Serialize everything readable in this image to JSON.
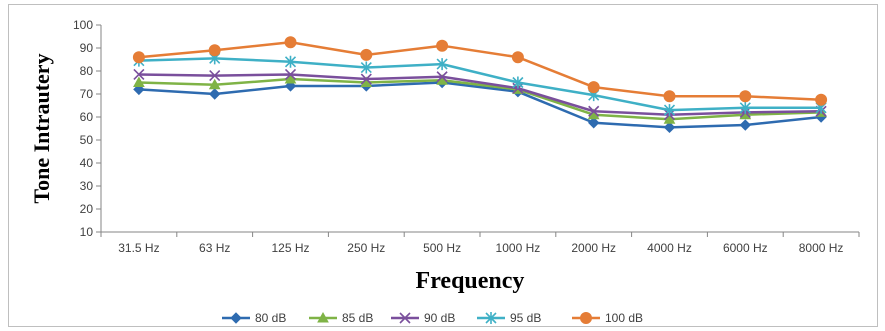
{
  "chart_data": {
    "type": "line",
    "title": "",
    "xlabel": "Frequency",
    "ylabel": "Tone Intrautery",
    "categories": [
      "31.5 Hz",
      "63 Hz",
      "125 Hz",
      "250 Hz",
      "500 Hz",
      "1000 Hz",
      "2000 Hz",
      "4000 Hz",
      "6000 Hz",
      "8000 Hz"
    ],
    "ylim": [
      10,
      100
    ],
    "yticks": [
      10,
      20,
      30,
      40,
      50,
      60,
      70,
      80,
      90,
      100
    ],
    "grid": false,
    "legend_position": "bottom",
    "series": [
      {
        "name": "80 dB",
        "color": "#2e6bb0",
        "marker": "diamond",
        "values": [
          72,
          70,
          73.5,
          73.5,
          75,
          71,
          57.5,
          55.5,
          56.5,
          60
        ]
      },
      {
        "name": "85 dB",
        "color": "#7fb346",
        "marker": "triangle",
        "values": [
          75,
          74,
          76.5,
          75,
          76,
          72,
          61,
          59,
          61,
          62
        ]
      },
      {
        "name": "90 dB",
        "color": "#7a4f9c",
        "marker": "x",
        "values": [
          78.5,
          78,
          78.5,
          76.5,
          77.5,
          72.5,
          62.5,
          61,
          62,
          62.5
        ]
      },
      {
        "name": "95 dB",
        "color": "#3fb0c6",
        "marker": "asterisk",
        "values": [
          84.5,
          85.5,
          84,
          81.5,
          83,
          75,
          69.5,
          63,
          64,
          64
        ]
      },
      {
        "name": "100 dB",
        "color": "#e57d36",
        "marker": "circle",
        "values": [
          86,
          89,
          92.5,
          87,
          91,
          86,
          73,
          69,
          69,
          67.5
        ]
      }
    ]
  }
}
